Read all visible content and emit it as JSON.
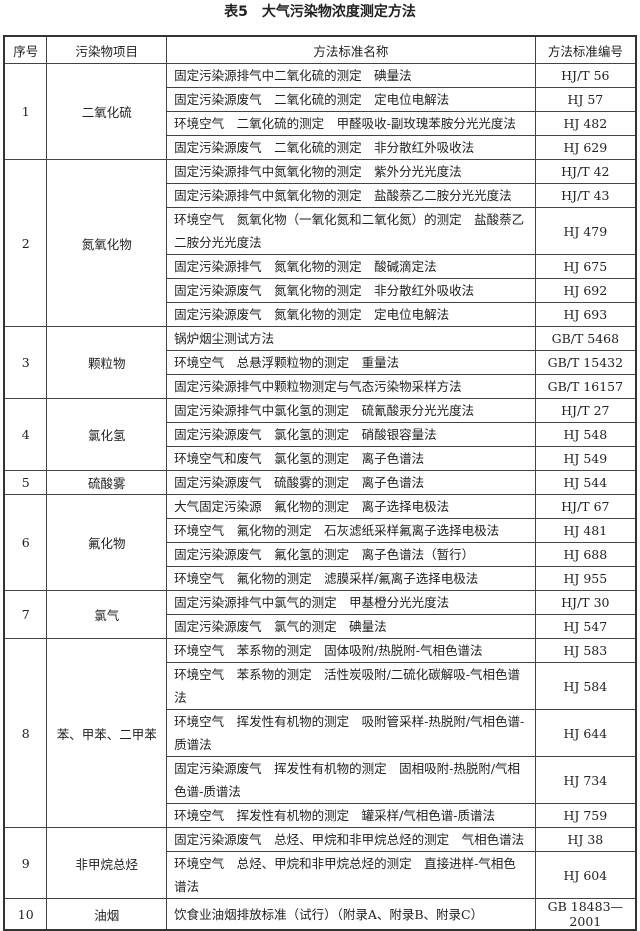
{
  "title": "表5　大气污染物浓度测定方法",
  "headers": [
    "序号",
    "污染物项目",
    "方法标准名称",
    "方法标准编号"
  ],
  "groups": [
    {
      "no": "1",
      "pollutant": "二氧化硫",
      "methods": [
        {
          "name": "固定污染源排气中二氧化硫的测定　碘量法",
          "code": "HJ/T 56"
        },
        {
          "name": "固定污染源废气　二氧化硫的测定　定电位电解法",
          "code": "HJ 57"
        },
        {
          "name": "环境空气　二氧化硫的测定　甲醛吸收-副玫瑰苯胺分光光度法",
          "code": "HJ 482"
        },
        {
          "name": "固定污染源废气　二氧化硫的测定　非分散红外吸收法",
          "code": "HJ 629"
        }
      ]
    },
    {
      "no": "2",
      "pollutant": "氮氧化物",
      "methods": [
        {
          "name": "固定污染源排气中氮氧化物的测定　紫外分光光度法",
          "code": "HJ/T 42"
        },
        {
          "name": "固定污染源排气中氮氧化物的测定　盐酸萘乙二胺分光光度法",
          "code": "HJ/T 43"
        },
        {
          "name": "环境空气　氮氧化物（一氧化氮和二氧化氮）的测定　盐酸萘乙二胺分光光度法",
          "code": "HJ 479",
          "double": true
        },
        {
          "name": "固定污染源排气　氮氧化物的测定　酸碱滴定法",
          "code": "HJ 675"
        },
        {
          "name": "固定污染源废气　氮氧化物的测定　非分散红外吸收法",
          "code": "HJ 692"
        },
        {
          "name": "固定污染源废气　氮氧化物的测定　定电位电解法",
          "code": "HJ 693"
        }
      ]
    },
    {
      "no": "3",
      "pollutant": "颗粒物",
      "methods": [
        {
          "name": "锅炉烟尘测试方法",
          "code": "GB/T 5468"
        },
        {
          "name": "环境空气　总悬浮颗粒物的测定　重量法",
          "code": "GB/T 15432"
        },
        {
          "name": "固定污染源排气中颗粒物测定与气态污染物采样方法",
          "code": "GB/T 16157"
        }
      ]
    },
    {
      "no": "4",
      "pollutant": "氯化氢",
      "methods": [
        {
          "name": "固定污染源排气中氯化氢的测定　硫氰酸汞分光光度法",
          "code": "HJ/T 27"
        },
        {
          "name": "固定污染源废气　氯化氢的测定　硝酸银容量法",
          "code": "HJ 548"
        },
        {
          "name": "环境空气和废气　氯化氢的测定　离子色谱法",
          "code": "HJ 549"
        }
      ]
    },
    {
      "no": "5",
      "pollutant": "硫酸雾",
      "methods": [
        {
          "name": "固定污染源废气　硫酸雾的测定　离子色谱法",
          "code": "HJ 544"
        }
      ]
    },
    {
      "no": "6",
      "pollutant": "氟化物",
      "methods": [
        {
          "name": "大气固定污染源　氟化物的测定　离子选择电极法",
          "code": "HJ/T 67"
        },
        {
          "name": "环境空气　氟化物的测定　石灰滤纸采样氟离子选择电极法",
          "code": "HJ 481"
        },
        {
          "name": "固定污染源废气　氟化氢的测定　离子色谱法（暂行）",
          "code": "HJ 688"
        },
        {
          "name": "环境空气　氟化物的测定　滤膜采样/氟离子选择电极法",
          "code": "HJ 955"
        }
      ]
    },
    {
      "no": "7",
      "pollutant": "氯气",
      "methods": [
        {
          "name": "固定污染源排气中氯气的测定　甲基橙分光光度法",
          "code": "HJ/T 30"
        },
        {
          "name": "固定污染源废气　氯气的测定　碘量法",
          "code": "HJ 547"
        }
      ]
    },
    {
      "no": "8",
      "pollutant": "苯、甲苯、二甲苯",
      "methods": [
        {
          "name": "环境空气　苯系物的测定　固体吸附/热脱附-气相色谱法",
          "code": "HJ 583"
        },
        {
          "name": "环境空气　苯系物的测定　活性炭吸附/二硫化碳解吸-气相色谱法",
          "code": "HJ 584"
        },
        {
          "name": "环境空气　挥发性有机物的测定　吸附管采样-热脱附/气相色谱-质谱法",
          "code": "HJ 644",
          "double": true
        },
        {
          "name": "固定污染源废气　挥发性有机物的测定　固相吸附-热脱附/气相色谱-质谱法",
          "code": "HJ 734",
          "double": true
        },
        {
          "name": "环境空气　挥发性有机物的测定　罐采样/气相色谱-质谱法",
          "code": "HJ 759"
        }
      ]
    },
    {
      "no": "9",
      "pollutant": "非甲烷总烃",
      "methods": [
        {
          "name": "固定污染源废气　总烃、甲烷和非甲烷总烃的测定　气相色谱法",
          "code": "HJ 38"
        },
        {
          "name": "环境空气　总烃、甲烷和非甲烷总烃的测定　直接进样-气相色谱法",
          "code": "HJ 604"
        }
      ]
    },
    {
      "no": "10",
      "pollutant": "油烟",
      "methods": [
        {
          "name": "饮食业油烟排放标准（试行）（附录A、附录B、附录C）",
          "code": "GB 18483—2001"
        }
      ]
    }
  ]
}
